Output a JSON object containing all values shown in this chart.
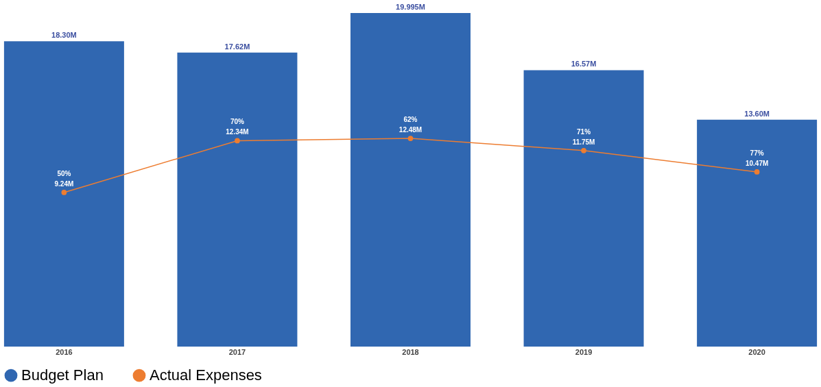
{
  "chart_data": {
    "type": "bar",
    "categories": [
      "2016",
      "2017",
      "2018",
      "2019",
      "2020"
    ],
    "series": [
      {
        "name": "Budget Plan",
        "color": "#3067b1",
        "values": [
          18.3,
          17.62,
          19.995,
          16.57,
          13.6
        ],
        "value_labels": [
          "18.30M",
          "17.62M",
          "19.995M",
          "16.57M",
          "13.60M"
        ]
      },
      {
        "name": "Actual Expenses",
        "type": "line",
        "color": "#ed7d31",
        "values": [
          9.24,
          12.34,
          12.48,
          11.75,
          10.47
        ],
        "value_labels": [
          "9.24M",
          "12.34M",
          "12.48M",
          "11.75M",
          "10.47M"
        ]
      }
    ],
    "annotations": [
      {
        "text": "50%",
        "x": "2016",
        "y": 9.24
      },
      {
        "text": "70%",
        "x": "2017",
        "y": 12.34
      },
      {
        "text": "62%",
        "x": "2018",
        "y": 12.48
      },
      {
        "text": "71%",
        "x": "2019",
        "y": 11.75
      },
      {
        "text": "77%",
        "x": "2020",
        "y": 10.47
      }
    ],
    "legend": "bottom",
    "marker": "circle"
  }
}
